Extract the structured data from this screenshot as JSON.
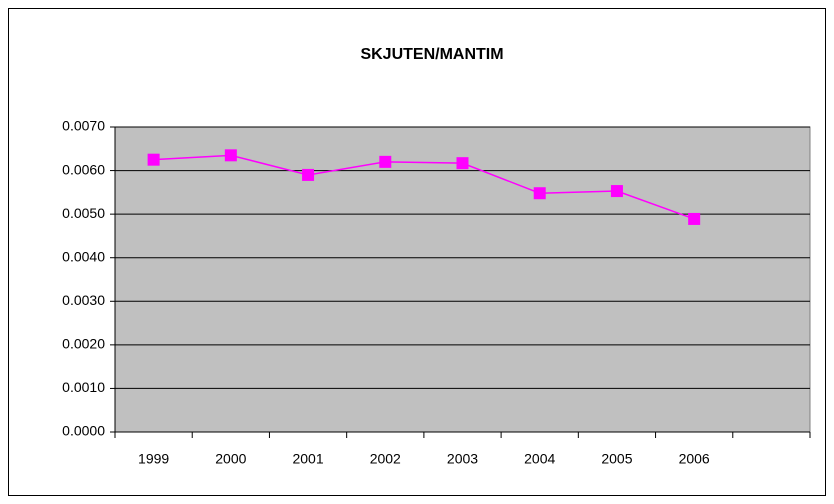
{
  "chart_data": {
    "type": "line",
    "title": "SKJUTEN/MANTIM",
    "categories": [
      "1999",
      "2000",
      "2001",
      "2002",
      "2003",
      "2004",
      "2005",
      "2006",
      null
    ],
    "series": [
      {
        "name": "SKJUTEN/MANTIM",
        "color": "#ff00ff",
        "values": [
          0.00625,
          0.00635,
          0.0059,
          0.0062,
          0.00617,
          0.00548,
          0.00553,
          0.00489,
          null
        ]
      }
    ],
    "ylim": [
      0,
      0.007
    ],
    "yticks": [
      {
        "value": 0,
        "label": "0.0000"
      },
      {
        "value": 0.001,
        "label": "0.0010"
      },
      {
        "value": 0.002,
        "label": "0.0020"
      },
      {
        "value": 0.003,
        "label": "0.0030"
      },
      {
        "value": 0.004,
        "label": "0.0040"
      },
      {
        "value": 0.005,
        "label": "0.0050"
      },
      {
        "value": 0.006,
        "label": "0.0060"
      },
      {
        "value": 0.007,
        "label": "0.0070"
      }
    ],
    "grid": true,
    "plot_background": "#c0c0c0"
  }
}
